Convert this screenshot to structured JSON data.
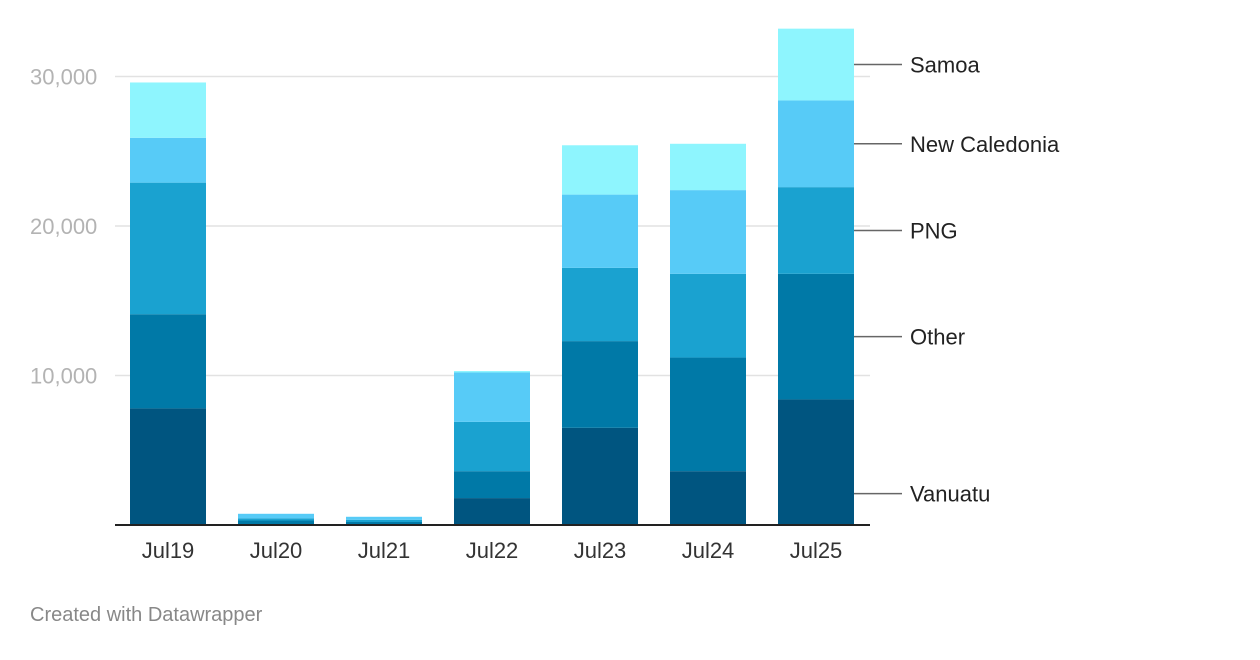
{
  "chart_data": {
    "type": "bar",
    "stacked": true,
    "categories": [
      "Jul19",
      "Jul20",
      "Jul21",
      "Jul22",
      "Jul23",
      "Jul24",
      "Jul25"
    ],
    "series": [
      {
        "name": "Vanuatu",
        "color": "#005580",
        "values": [
          7800,
          0,
          0,
          1800,
          6500,
          3600,
          8400
        ]
      },
      {
        "name": "Other",
        "color": "#0079a7",
        "values": [
          6300,
          300,
          200,
          1800,
          5800,
          7600,
          8400
        ]
      },
      {
        "name": "PNG",
        "color": "#1aa2d0",
        "values": [
          8800,
          150,
          150,
          3300,
          4900,
          5600,
          5800
        ]
      },
      {
        "name": "New Caledonia",
        "color": "#57cbf7",
        "values": [
          3000,
          300,
          200,
          3300,
          4900,
          5600,
          5800
        ]
      },
      {
        "name": "Samoa",
        "color": "#8ef5fe",
        "values": [
          3700,
          0,
          0,
          100,
          3300,
          3100,
          4800
        ]
      }
    ],
    "yticks": [
      10000,
      20000,
      30000
    ],
    "ytick_labels": [
      "10,000",
      "20,000",
      "30,000"
    ],
    "ylim": [
      0,
      33000
    ],
    "grid": true,
    "legend": "right, labels beside last bar"
  },
  "footer": {
    "credit": "Created with Datawrapper"
  }
}
